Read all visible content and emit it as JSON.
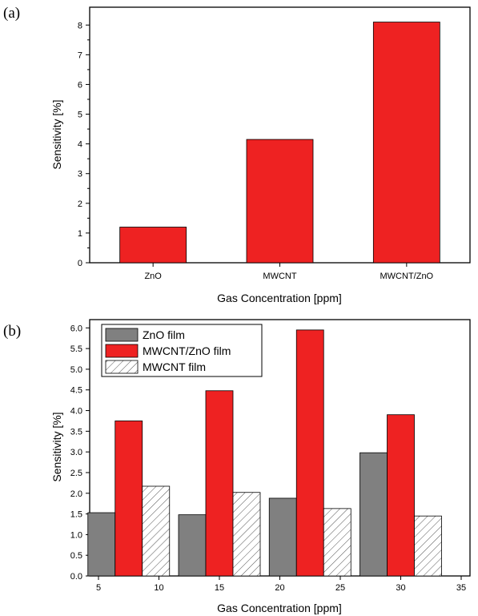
{
  "chart_data": [
    {
      "panel_label": "(a)",
      "type": "bar",
      "categories": [
        "ZnO",
        "MWCNT",
        "MWCNT/ZnO"
      ],
      "values": [
        1.2,
        4.15,
        8.1
      ],
      "xlabel": "Gas Concentration [ppm]",
      "ylabel": "Sensitivity [%]",
      "ylim": [
        0,
        8.6
      ],
      "yticks": [
        "0",
        "1",
        "2",
        "3",
        "4",
        "5",
        "6",
        "7",
        "8"
      ],
      "bar_color": "#ee2222",
      "grid": false
    },
    {
      "panel_label": "(b)",
      "type": "bar",
      "xlabel": "Gas Concentration [ppm]",
      "ylabel": "Sensitivity [%]",
      "ylim": [
        0,
        6.2
      ],
      "xlim": [
        5,
        35
      ],
      "xticks": [
        "5",
        "10",
        "15",
        "20",
        "25",
        "30",
        "35"
      ],
      "yticks": [
        "0.0",
        "0.5",
        "1.0",
        "1.5",
        "2.0",
        "2.5",
        "3.0",
        "3.5",
        "4.0",
        "4.5",
        "5.0",
        "5.5",
        "6.0"
      ],
      "groups": [
        7.5,
        15,
        22.5,
        30
      ],
      "series": [
        {
          "name": "ZnO film",
          "values": [
            1.53,
            1.48,
            1.88,
            2.98
          ],
          "color": "#808080",
          "pattern": "solid"
        },
        {
          "name": "MWCNT/ZnO film",
          "values": [
            3.75,
            4.48,
            5.95,
            3.9
          ],
          "color": "#ee2222",
          "pattern": "solid"
        },
        {
          "name": "MWCNT film",
          "values": [
            2.17,
            2.02,
            1.63,
            1.45
          ],
          "color": "#ffffff",
          "pattern": "hatch"
        }
      ],
      "legend_position": "top-left",
      "grid": false
    }
  ]
}
